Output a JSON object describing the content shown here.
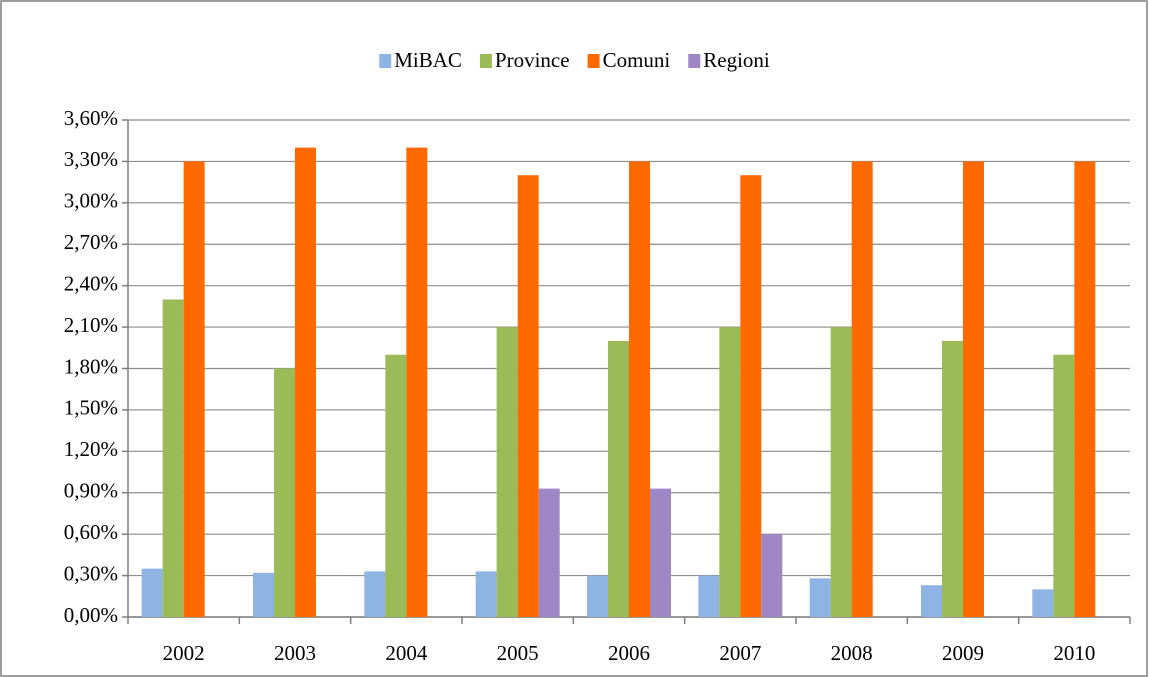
{
  "chart_data": {
    "type": "bar",
    "categories": [
      "2002",
      "2003",
      "2004",
      "2005",
      "2006",
      "2007",
      "2008",
      "2009",
      "2010"
    ],
    "series": [
      {
        "name": "MiBAC",
        "color": "#8db4e2",
        "values": [
          0.35,
          0.32,
          0.33,
          0.33,
          0.3,
          0.3,
          0.28,
          0.23,
          0.2
        ]
      },
      {
        "name": "Province",
        "color": "#9bbb59",
        "values": [
          2.3,
          1.8,
          1.9,
          2.1,
          2.0,
          2.1,
          2.1,
          2.0,
          1.9
        ]
      },
      {
        "name": "Comuni",
        "color": "#ff6a00",
        "values": [
          3.3,
          3.4,
          3.4,
          3.2,
          3.3,
          3.2,
          3.3,
          3.3,
          3.3
        ]
      },
      {
        "name": "Regioni",
        "color": "#9f86c4",
        "values": [
          null,
          null,
          null,
          0.93,
          0.93,
          0.6,
          null,
          null,
          null
        ]
      }
    ],
    "ylim": [
      0,
      3.6
    ],
    "yticks": [
      {
        "value": 0,
        "label": "0,00%"
      },
      {
        "value": 0.3,
        "label": "0,30%"
      },
      {
        "value": 0.6,
        "label": "0,60%"
      },
      {
        "value": 0.9,
        "label": "0,90%"
      },
      {
        "value": 1.2,
        "label": "1,20%"
      },
      {
        "value": 1.5,
        "label": "1,50%"
      },
      {
        "value": 1.8,
        "label": "1,80%"
      },
      {
        "value": 2.1,
        "label": "2,10%"
      },
      {
        "value": 2.4,
        "label": "2,40%"
      },
      {
        "value": 2.7,
        "label": "2,70%"
      },
      {
        "value": 3.0,
        "label": "3,00%"
      },
      {
        "value": 3.3,
        "label": "3,30%"
      },
      {
        "value": 3.6,
        "label": "3,60%"
      }
    ],
    "grid": true,
    "legend": "top"
  }
}
